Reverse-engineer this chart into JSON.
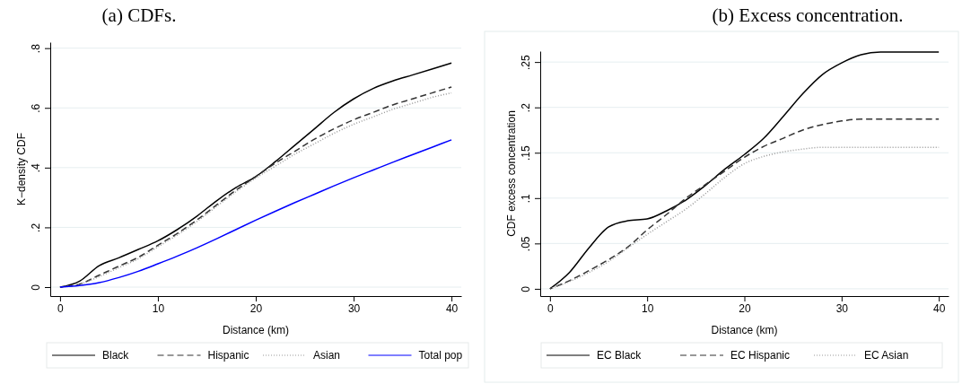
{
  "chart_data": [
    {
      "type": "line",
      "title": "(a) CDFs.",
      "xlabel": "Distance (km)",
      "ylabel": "K−density CDF",
      "x": [
        0,
        2,
        4,
        6,
        8,
        10,
        12,
        14,
        16,
        18,
        20,
        22,
        24,
        26,
        28,
        30,
        32,
        34,
        36,
        38,
        40
      ],
      "xlim": [
        -1,
        41
      ],
      "xticks": [
        0,
        10,
        20,
        30,
        40
      ],
      "ylim": [
        -0.03,
        0.82
      ],
      "yticks": [
        {
          "value": 0,
          "label": "0"
        },
        {
          "value": 0.2,
          "label": ".2"
        },
        {
          "value": 0.4,
          "label": ".4"
        },
        {
          "value": 0.6,
          "label": ".6"
        },
        {
          "value": 0.8,
          "label": ".8"
        }
      ],
      "grid": "y",
      "legend": "bottom",
      "series": [
        {
          "name": "Black",
          "color": "#000000",
          "line_style": "solid",
          "values": [
            0,
            0.02,
            0.072,
            0.098,
            0.126,
            0.155,
            0.193,
            0.238,
            0.289,
            0.334,
            0.37,
            0.42,
            0.475,
            0.53,
            0.585,
            0.63,
            0.665,
            0.69,
            0.71,
            0.73,
            0.75
          ]
        },
        {
          "name": "Hispanic",
          "color": "#333333",
          "line_style": "dashed",
          "values": [
            0,
            0.01,
            0.04,
            0.07,
            0.1,
            0.14,
            0.18,
            0.225,
            0.275,
            0.325,
            0.37,
            0.415,
            0.455,
            0.495,
            0.53,
            0.56,
            0.585,
            0.61,
            0.63,
            0.65,
            0.67
          ]
        },
        {
          "name": "Asian",
          "color": "#999999",
          "line_style": "dotted",
          "values": [
            0,
            0.01,
            0.035,
            0.065,
            0.095,
            0.135,
            0.175,
            0.22,
            0.27,
            0.32,
            0.365,
            0.405,
            0.445,
            0.48,
            0.515,
            0.545,
            0.57,
            0.595,
            0.615,
            0.635,
            0.65
          ]
        },
        {
          "name": "Total pop",
          "color": "#0000ff",
          "line_style": "solid",
          "values": [
            0,
            0.005,
            0.015,
            0.032,
            0.053,
            0.078,
            0.104,
            0.132,
            0.162,
            0.193,
            0.224,
            0.254,
            0.283,
            0.311,
            0.339,
            0.366,
            0.392,
            0.418,
            0.443,
            0.468,
            0.493
          ]
        }
      ]
    },
    {
      "type": "line",
      "title": "(b) Excess concentration.",
      "xlabel": "Distance (km)",
      "ylabel": "CDF excess concentration",
      "x": [
        0,
        2,
        4,
        6,
        8,
        10,
        12,
        14,
        16,
        18,
        20,
        22,
        24,
        26,
        28,
        30,
        32,
        34,
        36,
        38,
        40
      ],
      "xlim": [
        -1,
        41
      ],
      "xticks": [
        0,
        10,
        20,
        30,
        40
      ],
      "ylim": [
        -0.008,
        0.262
      ],
      "yticks": [
        {
          "value": 0,
          "label": "0"
        },
        {
          "value": 0.05,
          "label": ".05"
        },
        {
          "value": 0.1,
          "label": ".1"
        },
        {
          "value": 0.15,
          "label": ".15"
        },
        {
          "value": 0.2,
          "label": ".2"
        },
        {
          "value": 0.25,
          "label": ".25"
        }
      ],
      "grid": "y",
      "legend": "bottom",
      "series": [
        {
          "name": "EC Black",
          "color": "#000000",
          "line_style": "solid",
          "values": [
            0,
            0.018,
            0.045,
            0.068,
            0.075,
            0.077,
            0.086,
            0.098,
            0.114,
            0.132,
            0.148,
            0.166,
            0.19,
            0.215,
            0.236,
            0.249,
            0.258,
            0.261,
            0.261,
            0.261,
            0.261
          ]
        },
        {
          "name": "EC Hispanic",
          "color": "#333333",
          "line_style": "dashed",
          "values": [
            0,
            0.009,
            0.02,
            0.032,
            0.046,
            0.065,
            0.082,
            0.1,
            0.115,
            0.13,
            0.145,
            0.157,
            0.166,
            0.175,
            0.181,
            0.185,
            0.187,
            0.187,
            0.187,
            0.187,
            0.187
          ]
        },
        {
          "name": "EC Asian",
          "color": "#999999",
          "line_style": "dotted",
          "values": [
            0,
            0.008,
            0.018,
            0.03,
            0.045,
            0.06,
            0.074,
            0.088,
            0.105,
            0.123,
            0.138,
            0.146,
            0.151,
            0.154,
            0.156,
            0.156,
            0.156,
            0.156,
            0.156,
            0.156,
            0.156
          ]
        }
      ]
    }
  ]
}
